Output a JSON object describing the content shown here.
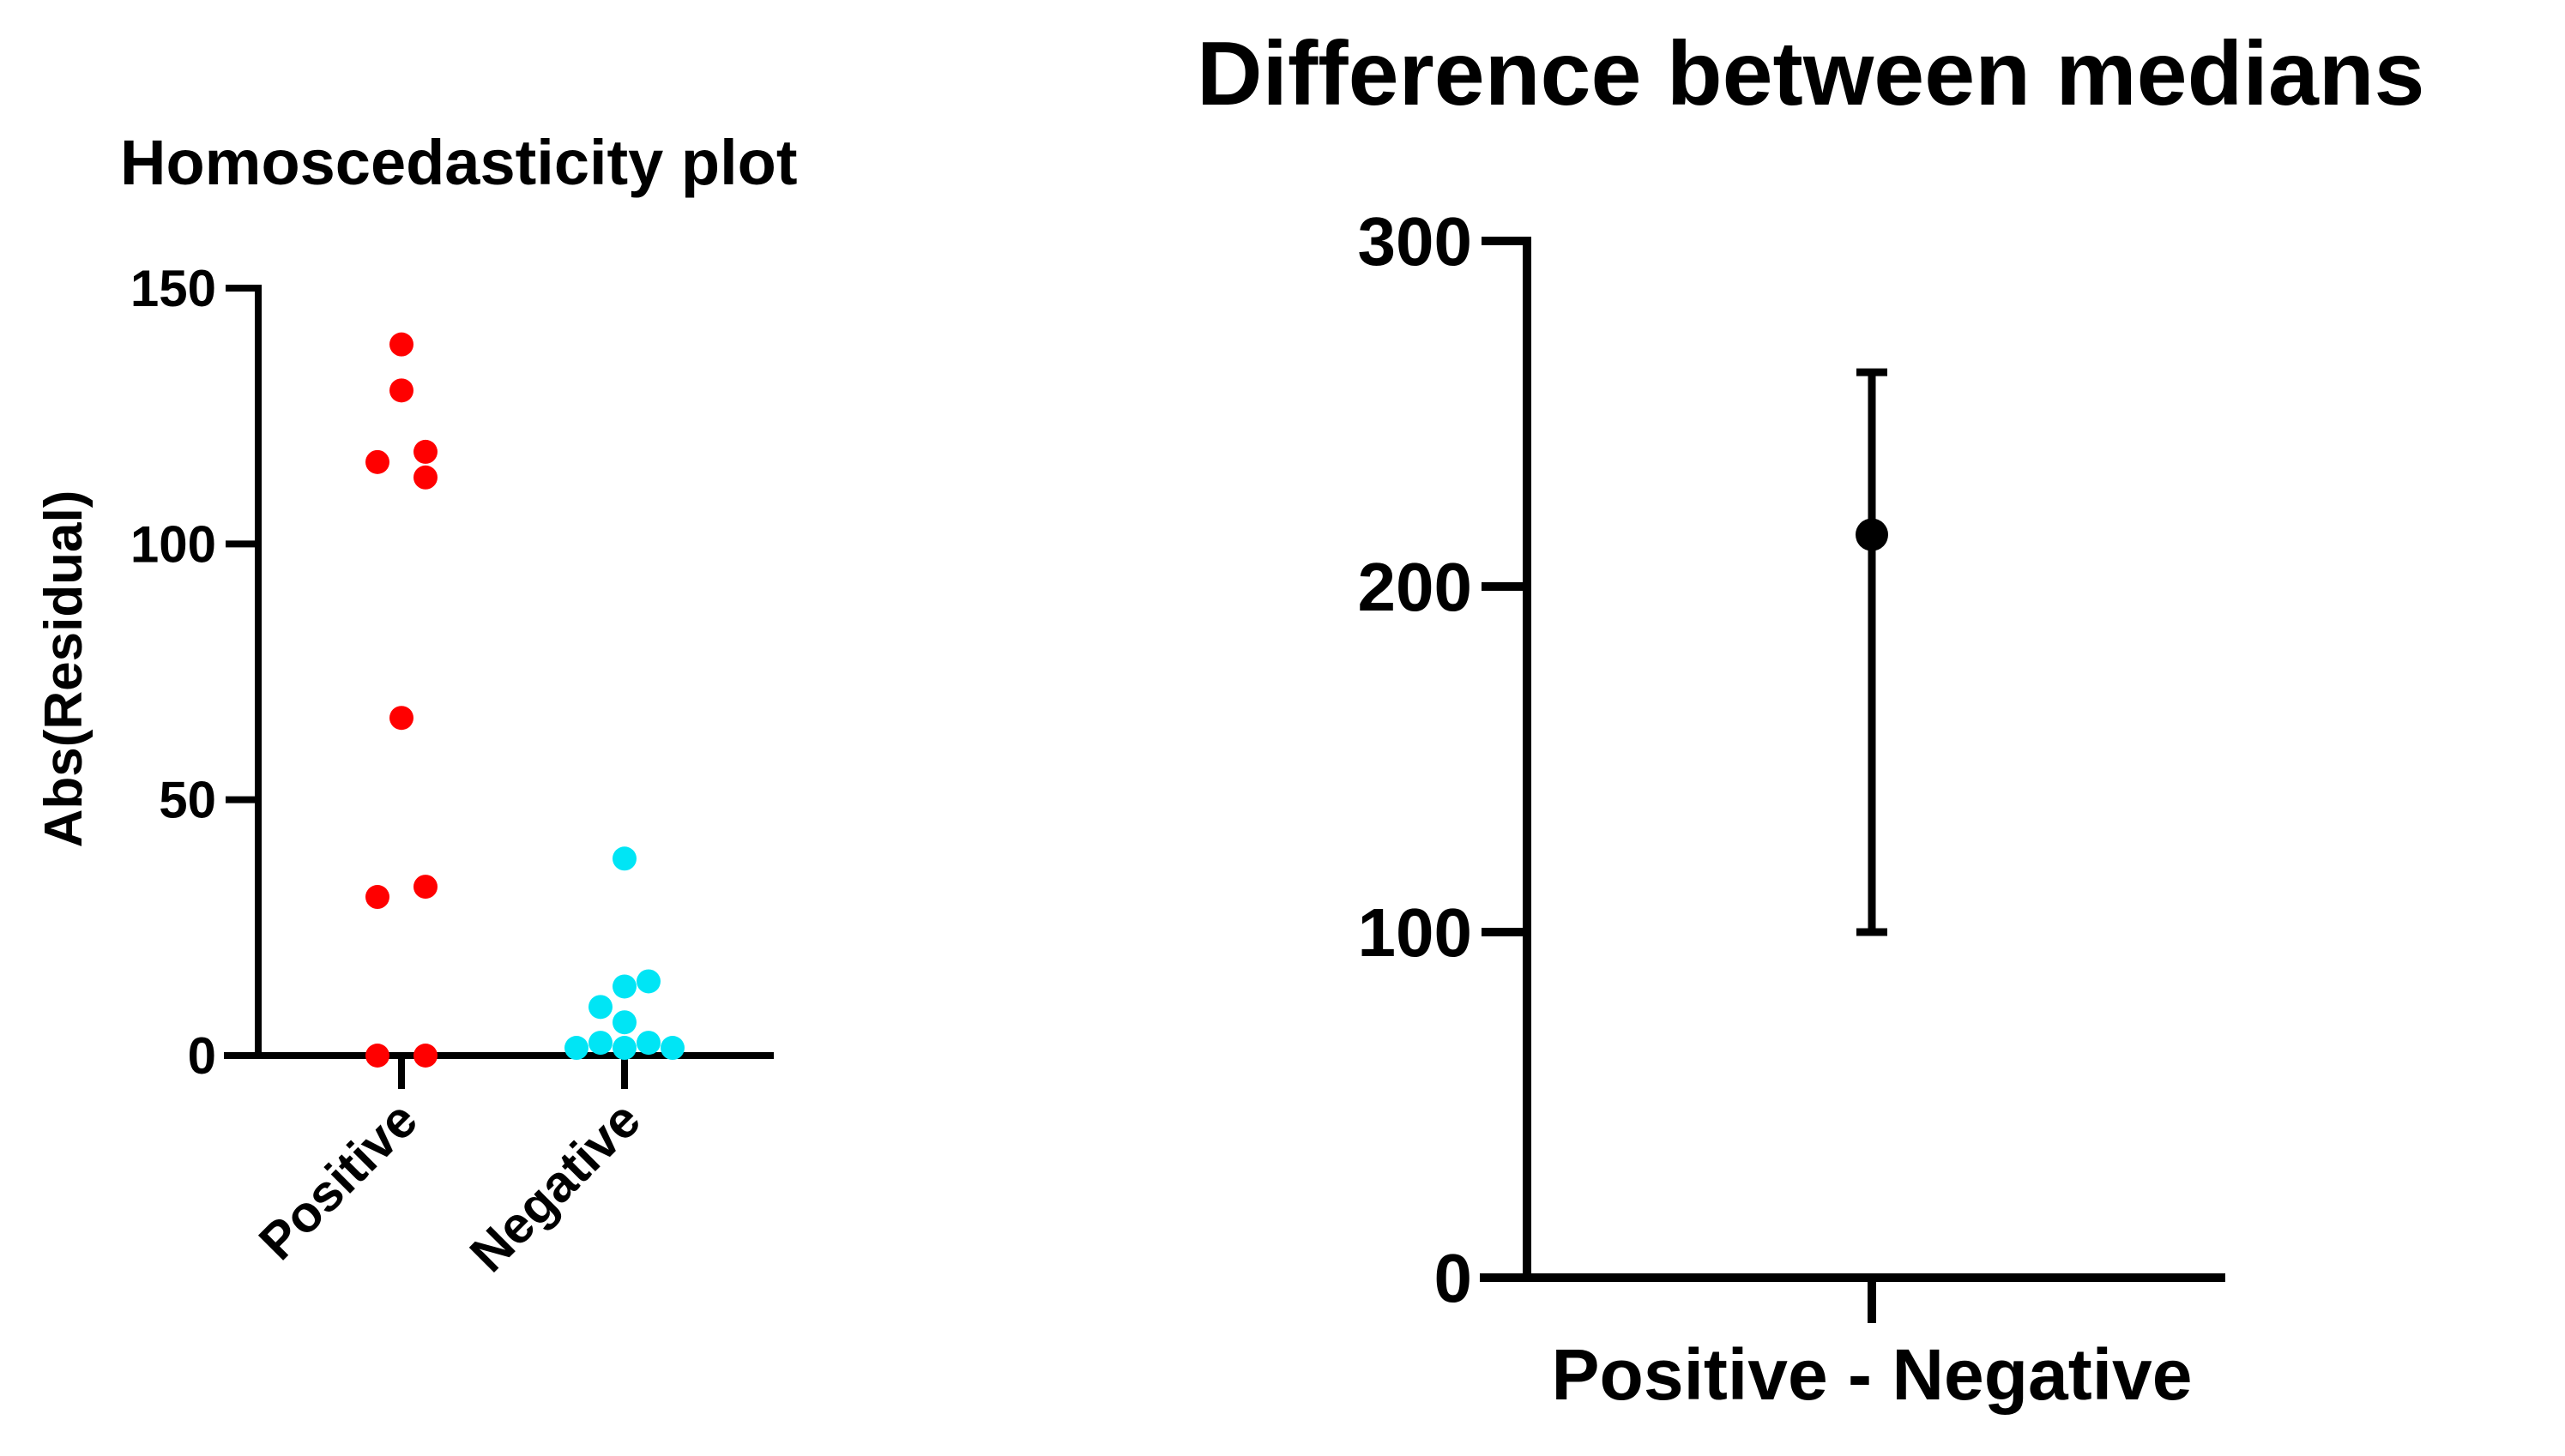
{
  "colors": {
    "axis": "#000000",
    "positive": "#ff0000",
    "negative": "#00e5f5",
    "point": "#000000",
    "background": "#ffffff"
  },
  "chart_data": [
    {
      "type": "scatter",
      "title": "Homoscedasticity plot",
      "xlabel": "",
      "ylabel": "Abs(Residual)",
      "categories": [
        "Positive",
        "Negative"
      ],
      "ylim": [
        0,
        150
      ],
      "yticks": [
        0,
        50,
        100,
        150
      ],
      "ytick_labels": [
        "0",
        "50",
        "100",
        "150"
      ],
      "series": [
        {
          "name": "Positive",
          "category": "Positive",
          "values": [
            139,
            130,
            118,
            116,
            113,
            66,
            33,
            31,
            0,
            0
          ],
          "jitter": [
            0,
            0,
            1,
            -1,
            1,
            0,
            1,
            -1,
            -1,
            1
          ]
        },
        {
          "name": "Negative",
          "category": "Negative",
          "values": [
            38.5,
            14.5,
            13.5,
            9.5,
            6.5,
            2.5,
            2.5,
            1.5,
            1.5,
            1.5
          ],
          "jitter": [
            0,
            1,
            0,
            -1,
            0,
            -1,
            1,
            -2,
            0,
            2
          ]
        }
      ]
    },
    {
      "type": "errorbar",
      "title": "Difference between medians",
      "xlabel": "",
      "ylabel": "",
      "categories": [
        "Positive - Negative"
      ],
      "ylim": [
        0,
        300
      ],
      "yticks": [
        0,
        100,
        200,
        300
      ],
      "ytick_labels": [
        "0",
        "100",
        "200",
        "300"
      ],
      "series": [
        {
          "name": "Positive - Negative",
          "value": 215,
          "lower": 100,
          "upper": 262
        }
      ]
    }
  ]
}
